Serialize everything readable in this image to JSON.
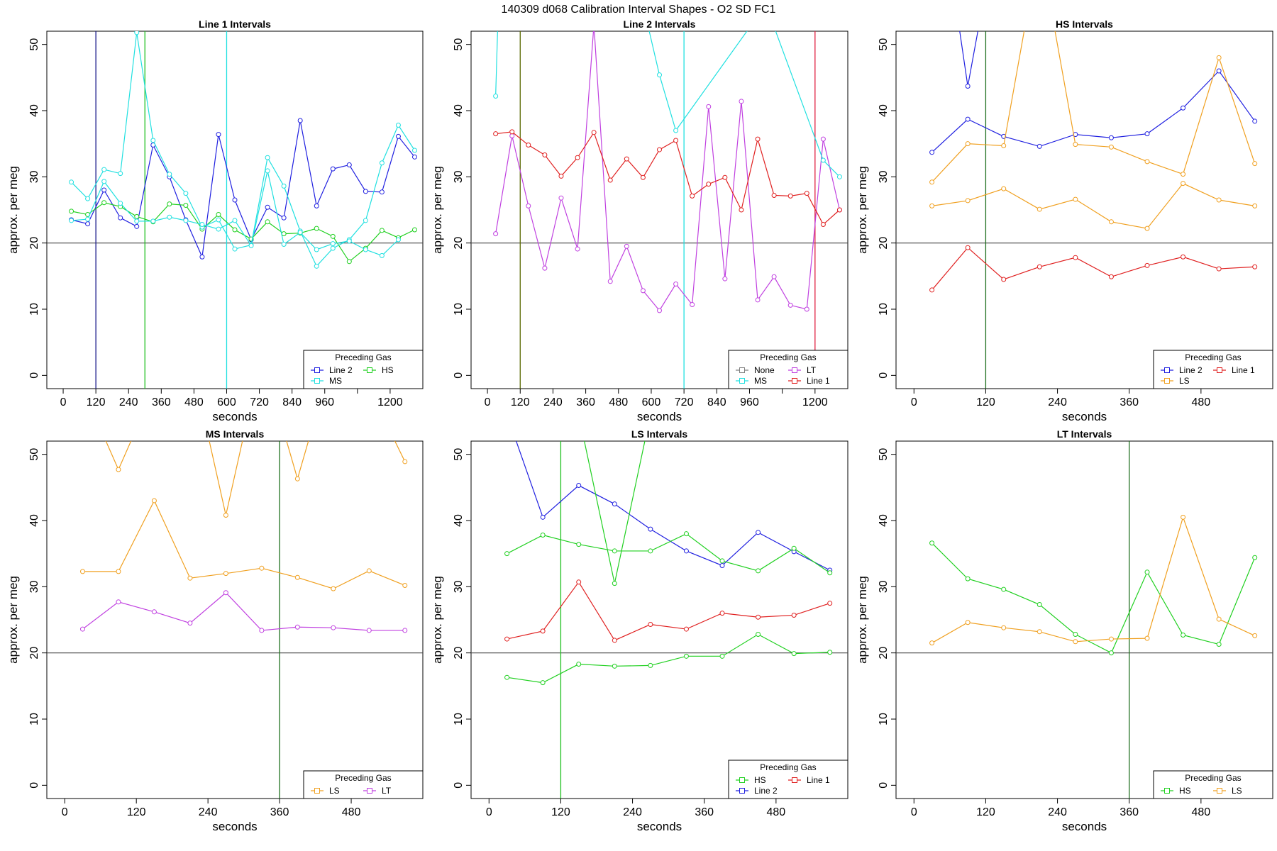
{
  "figure_title": "140309   d068   Calibration Interval Shapes - O2 SD FC1",
  "colors": {
    "None": "#808080",
    "Line 2": "#2020e0",
    "HS": "#20d020",
    "MS": "#20e0e0",
    "LT": "#c040e0",
    "Line 1": "#e02020",
    "LS": "#f0a020"
  },
  "chart_data": [
    {
      "type": "line",
      "title": "Line 1 Intervals",
      "xlabel": "seconds",
      "ylabel": "approx. per meg",
      "xlim": [
        -60,
        1320
      ],
      "ylim": [
        -2,
        52
      ],
      "xticks": [
        0,
        120,
        240,
        360,
        480,
        600,
        720,
        840,
        960,
        1080,
        1200
      ],
      "xtick_labels": [
        "0",
        "120",
        "240",
        "360",
        "480",
        "600",
        "720",
        "840",
        "960",
        "",
        "1200"
      ],
      "yticks": [
        0,
        10,
        20,
        30,
        40,
        50
      ],
      "hline": 20,
      "vlines": [
        {
          "x": 120,
          "color": "#1a1a8a"
        },
        {
          "x": 300,
          "color": "#20c020"
        },
        {
          "x": 600,
          "color": "#20e0e0"
        }
      ],
      "legend_title": "Preceding Gas",
      "legend_rows": [
        [
          "Line 2",
          "HS"
        ],
        [
          "MS"
        ]
      ],
      "series": [
        {
          "name": "Line 2",
          "color": "#2020e0",
          "x": [
            30,
            90,
            150,
            210,
            270,
            330,
            390,
            450,
            510,
            570,
            630,
            690,
            750,
            810,
            870,
            930,
            990,
            1050,
            1110,
            1170,
            1230,
            1290
          ],
          "y": [
            23.5,
            22.9,
            28,
            23.8,
            22.5,
            34.8,
            30,
            23.5,
            17.9,
            36.4,
            26.5,
            20.5,
            25.4,
            23.8,
            38.5,
            25.6,
            31.2,
            31.8,
            27.8,
            27.7,
            36.1,
            33
          ]
        },
        {
          "name": "HS",
          "color": "#20d020",
          "x": [
            30,
            90,
            150,
            210,
            270,
            330,
            390,
            450,
            510,
            570,
            630,
            690,
            750,
            810,
            870,
            930,
            990,
            1050,
            1110,
            1170,
            1230,
            1290
          ],
          "y": [
            24.8,
            24.3,
            26.1,
            25.5,
            24,
            23.2,
            25.9,
            25.7,
            22.1,
            24.3,
            22,
            20.6,
            23.2,
            21.4,
            21.5,
            22.2,
            21,
            17.2,
            19.2,
            21.9,
            20.8,
            22
          ]
        },
        {
          "name": "MS",
          "color": "#20e0e0",
          "x": [
            30,
            90,
            150,
            210,
            270,
            330,
            390,
            450,
            510,
            570,
            630,
            690,
            750,
            810,
            870,
            930,
            990,
            1050,
            1110,
            1170,
            1230,
            1290
          ],
          "y": [
            29.2,
            26.7,
            31.1,
            30.5,
            51.8,
            35.5,
            30.4,
            27.5,
            22.4,
            23.5,
            19.1,
            19.7,
            32.9,
            28.6,
            21.8,
            16.5,
            19.2,
            20.5,
            23.4,
            32.1,
            37.8,
            34
          ]
        },
        {
          "name": "MS",
          "color": "#20e0e0",
          "x": [
            30,
            90,
            150,
            210,
            270,
            330,
            390,
            450,
            510,
            570,
            630,
            690,
            750,
            810,
            870,
            930,
            990,
            1050,
            1110,
            1170,
            1230
          ],
          "y": [
            23.4,
            23.6,
            29.3,
            26,
            23.3,
            23.3,
            23.9,
            23.4,
            22.8,
            22.1,
            23.4,
            19.6,
            30.9,
            19.8,
            21.6,
            19,
            19.9,
            20.3,
            19,
            18.1,
            20.5
          ]
        }
      ]
    },
    {
      "type": "line",
      "title": "Line 2 Intervals",
      "xlabel": "seconds",
      "ylabel": "approx. per meg",
      "xlim": [
        -60,
        1320
      ],
      "ylim": [
        -2,
        52
      ],
      "xticks": [
        0,
        120,
        240,
        360,
        480,
        600,
        720,
        840,
        960,
        1080,
        1200
      ],
      "xtick_labels": [
        "0",
        "120",
        "240",
        "360",
        "480",
        "600",
        "720",
        "840",
        "960",
        "",
        "1200"
      ],
      "yticks": [
        0,
        10,
        20,
        30,
        40,
        50
      ],
      "hline": 20,
      "vlines": [
        {
          "x": 120,
          "color": "#5a6a00"
        },
        {
          "x": 720,
          "color": "#20e0e0"
        },
        {
          "x": 1200,
          "color": "#e02040"
        }
      ],
      "legend_title": "Preceding Gas",
      "legend_rows": [
        [
          "None",
          "LT"
        ],
        [
          "MS",
          "Line 1"
        ]
      ],
      "series": [
        {
          "name": "LT",
          "color": "#c040e0",
          "x": [
            30,
            90,
            150,
            210,
            270,
            330,
            390,
            450,
            510,
            570,
            630,
            690,
            750,
            810,
            870,
            930,
            990,
            1050,
            1110,
            1170,
            1230,
            1290
          ],
          "y": [
            21.4,
            36.2,
            25.6,
            16.2,
            26.8,
            19.1,
            53,
            14.2,
            19.5,
            12.8,
            9.8,
            13.8,
            10.7,
            40.6,
            14.6,
            41.4,
            11.4,
            14.9,
            10.6,
            10,
            35.7,
            25
          ]
        },
        {
          "name": "Line 1",
          "color": "#e02020",
          "x": [
            30,
            90,
            150,
            210,
            270,
            330,
            390,
            450,
            510,
            570,
            630,
            690,
            750,
            810,
            870,
            930,
            990,
            1050,
            1110,
            1170,
            1230,
            1290
          ],
          "y": [
            36.5,
            36.8,
            34.8,
            33.3,
            30.1,
            32.9,
            36.7,
            29.5,
            32.7,
            29.9,
            34.1,
            35.5,
            27.1,
            28.9,
            29.9,
            25,
            35.7,
            27.2,
            27.1,
            27.5,
            22.8,
            25
          ]
        },
        {
          "name": "MS",
          "color": "#20e0e0",
          "x": [
            30,
            40,
            570,
            630,
            690,
            1020,
            1230,
            1290
          ],
          "y": [
            42.2,
            56,
            56,
            45.4,
            37,
            56,
            32.5,
            30
          ]
        }
      ]
    },
    {
      "type": "line",
      "title": "HS Intervals",
      "xlabel": "seconds",
      "ylabel": "approx. per meg",
      "xlim": [
        -30,
        600
      ],
      "ylim": [
        -2,
        52
      ],
      "xticks": [
        0,
        120,
        240,
        360,
        480
      ],
      "xtick_labels": [
        "0",
        "120",
        "240",
        "360",
        "480"
      ],
      "yticks": [
        0,
        10,
        20,
        30,
        40,
        50
      ],
      "hline": 20,
      "vlines": [
        {
          "x": 120,
          "color": "#207020"
        }
      ],
      "legend_title": "Preceding Gas",
      "legend_rows": [
        [
          "Line 2",
          "Line 1"
        ],
        [
          "LS"
        ]
      ],
      "series": [
        {
          "name": "Line 2",
          "color": "#2020e0",
          "x": [
            30,
            90,
            150,
            210,
            270,
            330,
            390,
            450,
            510,
            570
          ],
          "y": [
            33.7,
            38.7,
            36.1,
            34.6,
            36.4,
            35.9,
            36.5,
            40.4,
            46,
            38.4
          ]
        },
        {
          "name": "Line 2",
          "color": "#2020e0",
          "x": [
            70,
            90,
            115
          ],
          "y": [
            56,
            43.7,
            56
          ]
        },
        {
          "name": "LS",
          "color": "#f0a020",
          "x": [
            30,
            90,
            150,
            210,
            270,
            330,
            390,
            450,
            510,
            570
          ],
          "y": [
            29.2,
            35,
            34.7,
            65,
            34.9,
            34.5,
            32.3,
            30.4,
            48,
            32
          ]
        },
        {
          "name": "LS",
          "color": "#f0a020",
          "x": [
            30,
            90,
            150,
            210,
            270,
            330,
            390,
            450,
            510,
            570
          ],
          "y": [
            25.6,
            26.4,
            28.2,
            25.1,
            26.6,
            23.2,
            22.2,
            29,
            26.5,
            25.6
          ]
        },
        {
          "name": "Line 1",
          "color": "#e02020",
          "x": [
            30,
            90,
            150,
            210,
            270,
            330,
            390,
            450,
            510,
            570
          ],
          "y": [
            12.9,
            19.3,
            14.5,
            16.4,
            17.8,
            14.9,
            16.6,
            17.9,
            16.1,
            16.4
          ]
        }
      ]
    },
    {
      "type": "line",
      "title": "MS Intervals",
      "xlabel": "seconds",
      "ylabel": "approx. per meg",
      "xlim": [
        -30,
        600
      ],
      "ylim": [
        -2,
        52
      ],
      "xticks": [
        0,
        120,
        240,
        360,
        480
      ],
      "xtick_labels": [
        "0",
        "120",
        "240",
        "360",
        "480"
      ],
      "yticks": [
        0,
        10,
        20,
        30,
        40,
        50
      ],
      "hline": 20,
      "vlines": [
        {
          "x": 360,
          "color": "#207020"
        }
      ],
      "legend_title": "Preceding Gas",
      "legend_rows": [
        [
          "LS",
          "LT"
        ]
      ],
      "series": [
        {
          "name": "LS",
          "color": "#f0a020",
          "x": [
            30,
            90,
            150,
            210,
            270,
            330,
            390,
            450,
            510,
            570
          ],
          "y": [
            60,
            47.7,
            60,
            65,
            40.8,
            65,
            46.3,
            65,
            60,
            48.9
          ]
        },
        {
          "name": "LS",
          "color": "#f0a020",
          "x": [
            30,
            90,
            150,
            210,
            270,
            330,
            390,
            450,
            510,
            570
          ],
          "y": [
            32.3,
            32.3,
            43,
            31.3,
            32,
            32.8,
            31.4,
            29.7,
            32.4,
            30.2
          ]
        },
        {
          "name": "LT",
          "color": "#c040e0",
          "x": [
            30,
            90,
            150,
            210,
            270,
            330,
            390,
            450,
            510,
            570
          ],
          "y": [
            23.6,
            27.7,
            26.2,
            24.5,
            29.1,
            23.4,
            23.9,
            23.8,
            23.4,
            23.4
          ]
        }
      ]
    },
    {
      "type": "line",
      "title": "LS Intervals",
      "xlabel": "seconds",
      "ylabel": "approx. per meg",
      "xlim": [
        -30,
        600
      ],
      "ylim": [
        -2,
        52
      ],
      "xticks": [
        0,
        120,
        240,
        360,
        480
      ],
      "xtick_labels": [
        "0",
        "120",
        "240",
        "360",
        "480"
      ],
      "yticks": [
        0,
        10,
        20,
        30,
        40,
        50
      ],
      "hline": 20,
      "vlines": [
        {
          "x": 120,
          "color": "#20c020"
        }
      ],
      "legend_title": "Preceding Gas",
      "legend_rows": [
        [
          "HS",
          "Line 1"
        ],
        [
          "Line 2"
        ]
      ],
      "series": [
        {
          "name": "Line 2",
          "color": "#2020e0",
          "x": [
            30,
            90,
            150,
            210,
            270,
            330,
            390,
            450,
            510,
            570
          ],
          "y": [
            56,
            40.5,
            45.3,
            42.5,
            38.7,
            35.4,
            33.2,
            38.2,
            35.3,
            32.5
          ]
        },
        {
          "name": "HS",
          "color": "#20d020",
          "x": [
            30,
            90,
            150,
            210,
            270,
            330,
            390,
            450,
            510,
            570
          ],
          "y": [
            35,
            37.8,
            36.4,
            35.4,
            35.4,
            38,
            33.9,
            32.4,
            35.8,
            32.1
          ]
        },
        {
          "name": "HS",
          "color": "#20d020",
          "x": [
            150,
            210,
            270
          ],
          "y": [
            56,
            30.5,
            56
          ]
        },
        {
          "name": "HS",
          "color": "#20d020",
          "x": [
            30,
            90,
            150,
            210,
            270,
            330,
            390,
            450,
            510,
            570
          ],
          "y": [
            16.3,
            15.5,
            18.3,
            18,
            18.1,
            19.5,
            19.5,
            22.8,
            19.9,
            20.1
          ]
        },
        {
          "name": "Line 1",
          "color": "#e02020",
          "x": [
            30,
            90,
            150,
            210,
            270,
            330,
            390,
            450,
            510,
            570
          ],
          "y": [
            22.1,
            23.3,
            30.7,
            21.9,
            24.3,
            23.6,
            26,
            25.4,
            25.7,
            27.5
          ]
        }
      ]
    },
    {
      "type": "line",
      "title": "LT Intervals",
      "xlabel": "seconds",
      "ylabel": "approx. per meg",
      "xlim": [
        -30,
        600
      ],
      "ylim": [
        -2,
        52
      ],
      "xticks": [
        0,
        120,
        240,
        360,
        480
      ],
      "xtick_labels": [
        "0",
        "120",
        "240",
        "360",
        "480"
      ],
      "yticks": [
        0,
        10,
        20,
        30,
        40,
        50
      ],
      "hline": 20,
      "vlines": [
        {
          "x": 360,
          "color": "#207020"
        }
      ],
      "legend_title": "Preceding Gas",
      "legend_rows": [
        [
          "HS",
          "LS"
        ]
      ],
      "series": [
        {
          "name": "HS",
          "color": "#20d020",
          "x": [
            30,
            90,
            150,
            210,
            270,
            330,
            390,
            450,
            510,
            570
          ],
          "y": [
            36.6,
            31.2,
            29.6,
            27.3,
            22.8,
            20,
            32.2,
            22.7,
            21.3,
            34.4
          ]
        },
        {
          "name": "LS",
          "color": "#f0a020",
          "x": [
            30,
            90,
            150,
            210,
            270,
            330,
            390,
            450,
            510,
            570
          ],
          "y": [
            21.5,
            24.6,
            23.8,
            23.2,
            21.7,
            22.1,
            22.2,
            40.5,
            25.1,
            22.6
          ]
        }
      ]
    }
  ]
}
